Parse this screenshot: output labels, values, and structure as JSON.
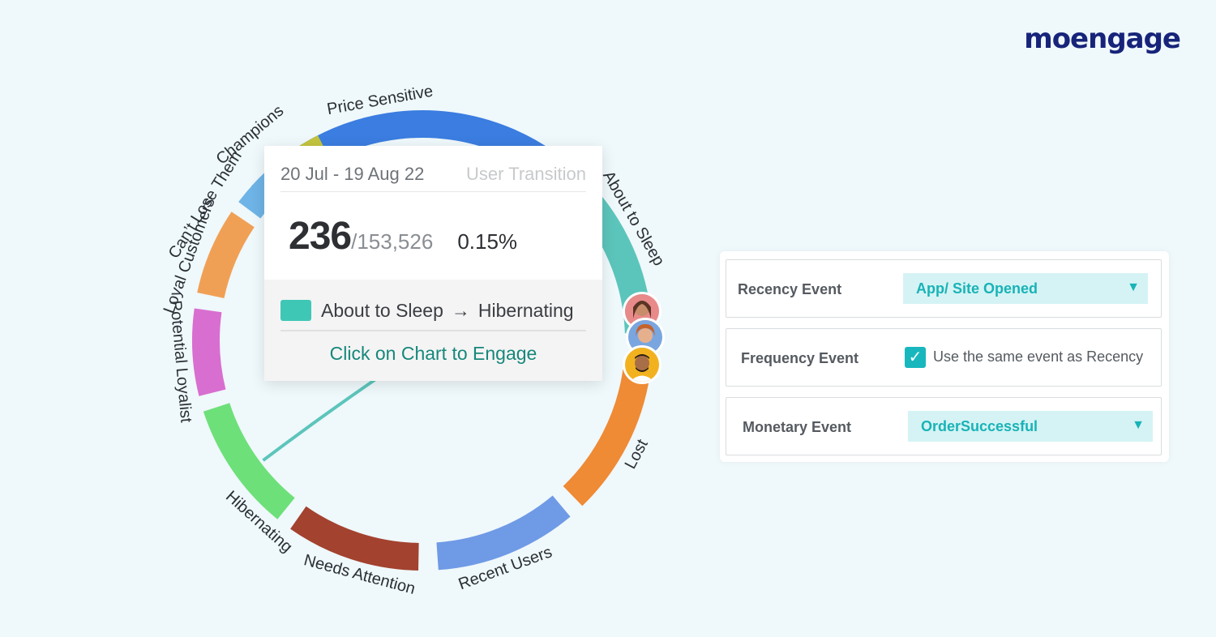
{
  "brand": {
    "logo_text": "moengage",
    "accent": "#17247a"
  },
  "chart_data": {
    "type": "chord",
    "segments": [
      {
        "name": "Price Sensitive",
        "color": "#3b7de0"
      },
      {
        "name": "About to Sleep",
        "color": "#5cc5bb"
      },
      {
        "name": "Lost",
        "color": "#ef8a35"
      },
      {
        "name": "Recent Users",
        "color": "#6f9ae6"
      },
      {
        "name": "Needs Attention",
        "color": "#a3422f"
      },
      {
        "name": "Hibernating",
        "color": "#6ee07a"
      },
      {
        "name": "Potential Loyalist",
        "color": "#d86ed0"
      },
      {
        "name": "Loyal Customers",
        "color": "#f0a055"
      },
      {
        "name": "Can’t Lose Them",
        "color": "#6eb4e6"
      },
      {
        "name": "Champions",
        "color": "#c4c43f"
      }
    ],
    "highlighted_link": {
      "from": "About to Sleep",
      "to": "Hibernating",
      "color": "#5cc5bb"
    }
  },
  "tooltip": {
    "date_range": "20 Jul - 19 Aug 22",
    "title": "User Transition",
    "count": "236",
    "total": "/153,526",
    "percent": "0.15%",
    "from": "About to Sleep",
    "arrow": "→",
    "to": "Hibernating",
    "cta": "Click on Chart to Engage"
  },
  "settings": {
    "recency": {
      "label": "Recency Event",
      "value": "App/ Site Opened"
    },
    "frequency": {
      "label": "Frequency Event",
      "checkbox_label": "Use the same event as Recency",
      "checked": true
    },
    "monetary": {
      "label": "Monetary Event",
      "value": "OrderSuccessful"
    }
  }
}
